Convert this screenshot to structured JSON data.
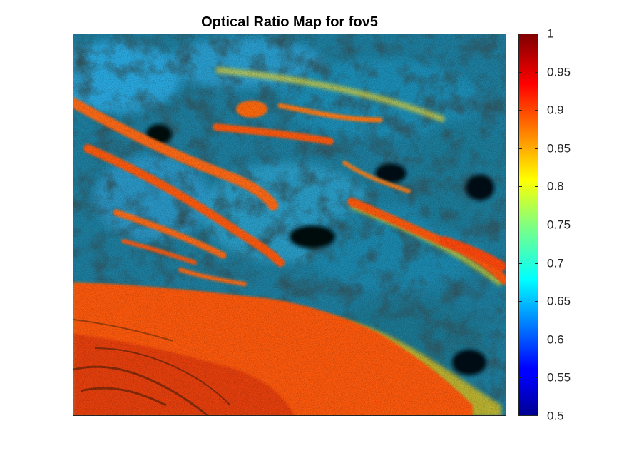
{
  "chart_data": {
    "type": "heatmap",
    "title": "Optical Ratio Map for fov5",
    "xlabel": "",
    "ylabel": "",
    "colormap": "jet",
    "colorbar": {
      "range": [
        0.5,
        1.0
      ],
      "ticks": [
        "1",
        "0.95",
        "0.9",
        "0.85",
        "0.8",
        "0.75",
        "0.7",
        "0.65",
        "0.6",
        "0.55",
        "0.5"
      ],
      "tick_values": [
        1.0,
        0.95,
        0.9,
        0.85,
        0.8,
        0.75,
        0.7,
        0.65,
        0.6,
        0.55,
        0.5
      ],
      "placement": "right"
    },
    "axes_ticks_visible": false,
    "grid": false,
    "colors": {
      "background_dark": "#0a1a20",
      "collagen_orange": "#ff5a10",
      "tissue_cyan": "#1aa0c8"
    }
  }
}
